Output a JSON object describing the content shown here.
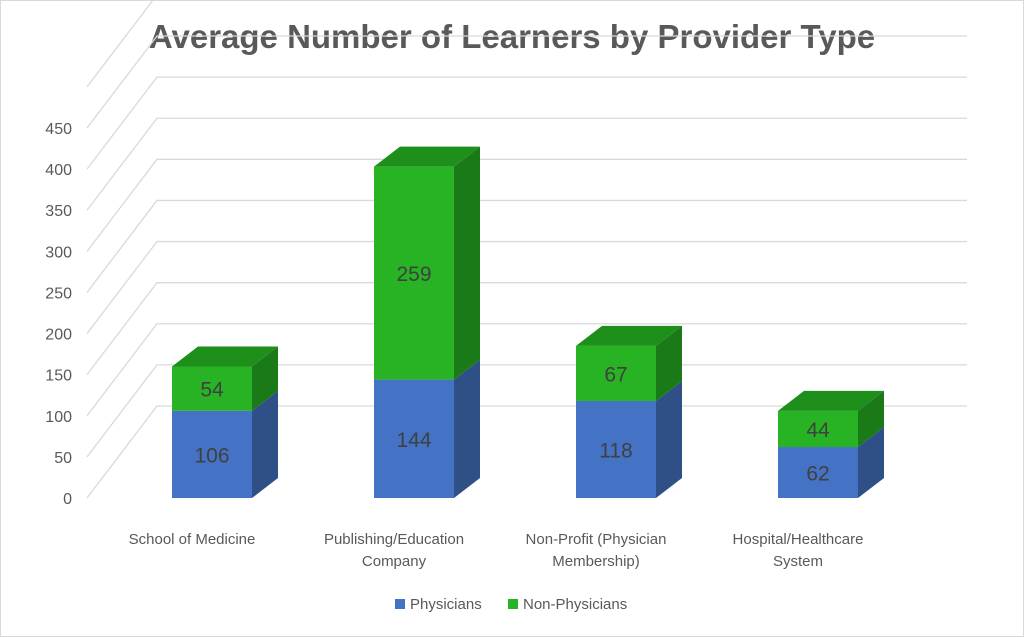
{
  "chart_data": {
    "type": "bar",
    "stacked": true,
    "three_d": true,
    "title": "Average Number of Learners by Provider Type",
    "categories": [
      [
        "School of Medicine"
      ],
      [
        "Publishing/Education",
        "Company"
      ],
      [
        "Non-Profit (Physician",
        "Membership)"
      ],
      [
        "Hospital/Healthcare",
        "System"
      ]
    ],
    "series": [
      {
        "name": "Physicians",
        "values": [
          106,
          144,
          118,
          62
        ],
        "color": "#4472c4",
        "side_color": "#2f4f87"
      },
      {
        "name": "Non-Physicians",
        "values": [
          54,
          259,
          67,
          44
        ],
        "color": "#27b324",
        "side_color": "#1a7a18",
        "top_color": "#1e8f1b"
      }
    ],
    "ylim": [
      0,
      450
    ],
    "yticks": [
      0,
      50,
      100,
      150,
      200,
      250,
      300,
      350,
      400,
      450
    ],
    "grid": true,
    "legend_position": "bottom"
  }
}
